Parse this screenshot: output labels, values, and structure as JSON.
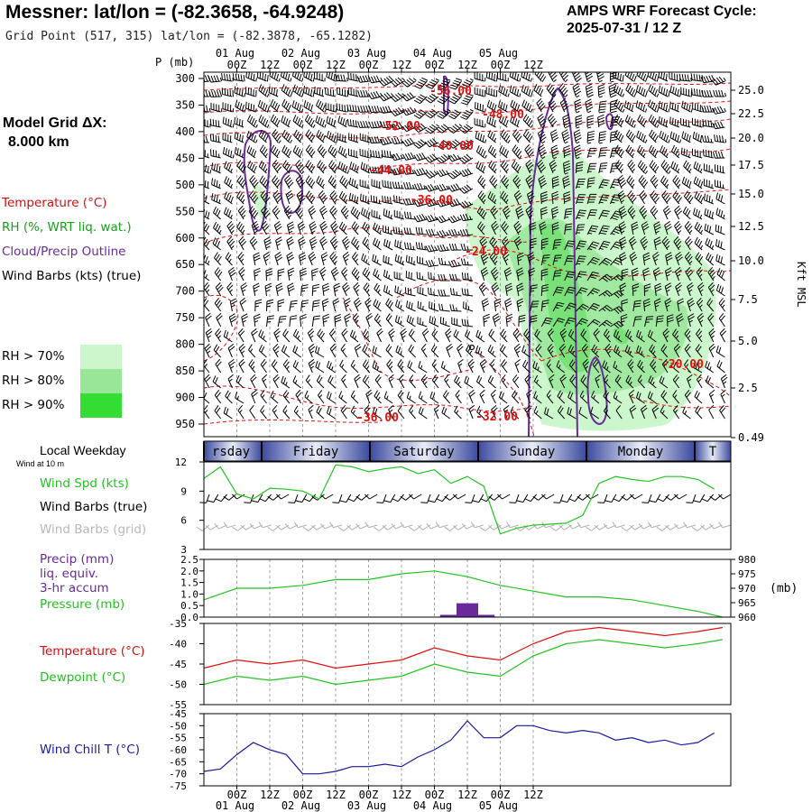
{
  "header": {
    "title": "Messner:  lat/lon = (-82.3658, -64.9248)",
    "grid_point": "Grid Point (517, 315) lat/lon = (-82.3878, -65.1282)",
    "cycle_line1": "AMPS WRF Forecast Cycle:",
    "cycle_line2": "2025-07-31 / 12  Z"
  },
  "model_grid": {
    "line1": "Model Grid ΔX:",
    "line2": "8.000 km"
  },
  "legend": {
    "temperature": "Temperature (°C)",
    "rh": "RH (%, WRT liq. wat.)",
    "cloud": "Cloud/Precip Outline",
    "wind": "Wind Barbs (kts) (true)",
    "rh_levels": [
      {
        "label": "RH > 70%",
        "color": "#ccf7cc"
      },
      {
        "label": "RH > 80%",
        "color": "#99e699"
      },
      {
        "label": "RH > 90%",
        "color": "#33dd33"
      }
    ]
  },
  "colors": {
    "temperature": "#e01010",
    "rh": "#22c422",
    "cloud": "#6a2a9a",
    "wind_spd": "#22c422",
    "wind_grid": "#b0b0b0",
    "pressure": "#22c422",
    "precip": "#6a2a9a",
    "dewpoint": "#22c422",
    "wind_chill": "#1a1aa0"
  },
  "time_axis": {
    "ticks": [
      "00Z",
      "12Z",
      "00Z",
      "12Z",
      "00Z",
      "12Z",
      "00Z",
      "12Z",
      "00Z",
      "12Z"
    ],
    "dates": [
      "01 Aug",
      "02 Aug",
      "03 Aug",
      "04 Aug",
      "05 Aug"
    ]
  },
  "weekday": {
    "label": "Local Weekday",
    "sublabel": "Wind at 10 m",
    "days": [
      "rsday",
      "Friday",
      "Saturday",
      "Sunday",
      "Monday",
      "T"
    ]
  },
  "panel_labels": {
    "wind_spd": "Wind Spd (kts)",
    "wind_barbs": "Wind Barbs (true)",
    "wind_barbs_grid": "Wind Barbs (grid)",
    "precip1": "Precip (mm)",
    "precip2": "liq. equiv.",
    "precip3": "3-hr accum",
    "pressure": "Pressure (mb)",
    "pressure_unit": "(mb)",
    "temperature": "Temperature (°C)",
    "dewpoint": "Dewpoint (°C)",
    "wind_chill": "Wind Chill T (°C)"
  },
  "chart_data": [
    {
      "type": "heatmap",
      "title": "",
      "ylabel": "P (mb)",
      "ylabel_right": "Kft MSL",
      "y_ticks": [
        "300",
        "350",
        "400",
        "450",
        "500",
        "550",
        "600",
        "650",
        "700",
        "750",
        "800",
        "850",
        "900",
        "950"
      ],
      "y_ticks_right": [
        "25.0",
        "22.5",
        "20.0",
        "17.5",
        "15.0",
        "12.5",
        "10.0",
        "7.5",
        "5.0",
        "2.5",
        "0.49"
      ],
      "temperature_labels": [
        "-56.00",
        "-52.00",
        "-48.00",
        "-44.00",
        "-40.00",
        "-36.00",
        "-24.00",
        "-20.00",
        "-36.00",
        "-32.00"
      ]
    },
    {
      "type": "line",
      "ylabel": "Wind Spd (kts)",
      "y_ticks": [
        "12",
        "9",
        "6",
        "3"
      ],
      "ylim": [
        3,
        12
      ],
      "hours": [
        0,
        6,
        12,
        18,
        24,
        30,
        36,
        42,
        48,
        54,
        60,
        66,
        72,
        78,
        84,
        90,
        96,
        102,
        108,
        114,
        120,
        126,
        132,
        138,
        144,
        150,
        156,
        162,
        168,
        174,
        180,
        186
      ],
      "values": [
        10.3,
        11.5,
        8.7,
        8.2,
        9.3,
        9.2,
        9.0,
        8.2,
        11.7,
        11.5,
        11.0,
        11.3,
        11.5,
        10.8,
        11.2,
        9.8,
        10.5,
        9.5,
        4.6,
        5.2,
        5.5,
        5.6,
        5.7,
        6.5,
        9.8,
        10.5,
        10.2,
        10.0,
        10.5,
        10.5,
        10.2,
        9.2
      ]
    },
    {
      "type": "bar",
      "ylabel": "Precip (mm)",
      "y_ticks_left": [
        "2.5",
        "2.0",
        "1.5",
        "1.0",
        "0.5",
        "0.0"
      ],
      "y_ticks_right": [
        "980",
        "975",
        "970",
        "965",
        "960"
      ],
      "ylim": [
        0,
        2.5
      ],
      "ylim_right": [
        960,
        980
      ],
      "precip_bars": [
        {
          "hour": 90,
          "value": 0.1
        },
        {
          "hour": 96,
          "value": 0.6
        },
        {
          "hour": 102,
          "value": 0.1
        }
      ],
      "pressure_hours": [
        0,
        12,
        24,
        36,
        48,
        60,
        72,
        84,
        96,
        108,
        120,
        132,
        144,
        156,
        168,
        180,
        189
      ],
      "pressure_values": [
        966,
        970,
        970,
        971,
        973,
        973,
        975,
        976,
        974,
        971,
        969,
        967,
        967,
        966,
        964,
        962,
        960
      ]
    },
    {
      "type": "line",
      "ylabel": "Temperature (°C)",
      "y_ticks": [
        "-35",
        "-40",
        "-45",
        "-50",
        "-55"
      ],
      "ylim": [
        -55,
        -35
      ],
      "hours": [
        0,
        12,
        24,
        36,
        48,
        60,
        72,
        84,
        96,
        108,
        120,
        132,
        144,
        156,
        168,
        180,
        189
      ],
      "series": [
        {
          "name": "Temperature (°C)",
          "values": [
            -46,
            -44,
            -45,
            -44,
            -46,
            -45,
            -44,
            -41,
            -43,
            -44,
            -40,
            -37,
            -36,
            -37,
            -38,
            -37,
            -36
          ]
        },
        {
          "name": "Dewpoint (°C)",
          "values": [
            -50,
            -48,
            -49,
            -48,
            -50,
            -49,
            -48,
            -45,
            -47,
            -48,
            -43,
            -40,
            -39,
            -40,
            -41,
            -40,
            -39
          ]
        }
      ]
    },
    {
      "type": "line",
      "ylabel": "Wind Chill T (°C)",
      "y_ticks": [
        "-45",
        "-50",
        "-55",
        "-60",
        "-65",
        "-70",
        "-75"
      ],
      "ylim": [
        -75,
        -45
      ],
      "hours": [
        0,
        6,
        12,
        18,
        24,
        30,
        36,
        42,
        48,
        54,
        60,
        66,
        72,
        78,
        84,
        90,
        96,
        102,
        108,
        114,
        120,
        126,
        132,
        138,
        144,
        150,
        156,
        162,
        168,
        174,
        180,
        186
      ],
      "values": [
        -69,
        -68,
        -62,
        -57,
        -60,
        -62,
        -70,
        -70,
        -69,
        -67,
        -67,
        -66,
        -67,
        -63,
        -60,
        -56,
        -48,
        -55,
        -55,
        -50,
        -50,
        -52,
        -53,
        -52,
        -53,
        -56,
        -55,
        -57,
        -56,
        -58,
        -57,
        -53
      ]
    }
  ]
}
